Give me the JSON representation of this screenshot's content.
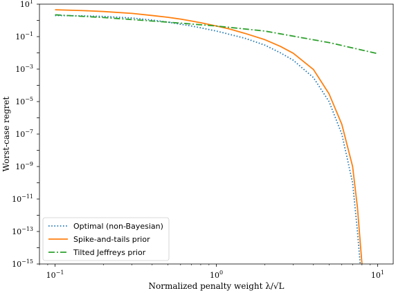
{
  "chart_data": {
    "type": "line",
    "xlabel": "Normalized penalty weight λ/√L",
    "ylabel": "Worst-case regret",
    "xscale": "log",
    "yscale": "log",
    "xlim": [
      0.08,
      12.5
    ],
    "ylim": [
      1e-15,
      10
    ],
    "x_tick_labels": [
      {
        "value": 0.1,
        "base": "10",
        "exp": "−1"
      },
      {
        "value": 1,
        "base": "10",
        "exp": "0"
      },
      {
        "value": 10,
        "base": "10",
        "exp": "1"
      }
    ],
    "y_tick_labels": [
      {
        "value": 10,
        "base": "10",
        "exp": "1"
      },
      {
        "value": 0.1,
        "base": "10",
        "exp": "−1"
      },
      {
        "value": 0.001,
        "base": "10",
        "exp": "−3"
      },
      {
        "value": 1e-05,
        "base": "10",
        "exp": "−5"
      },
      {
        "value": 1e-07,
        "base": "10",
        "exp": "−7"
      },
      {
        "value": 1e-09,
        "base": "10",
        "exp": "−9"
      },
      {
        "value": 1e-11,
        "base": "10",
        "exp": "−11"
      },
      {
        "value": 1e-13,
        "base": "10",
        "exp": "−13"
      },
      {
        "value": 1e-15,
        "base": "10",
        "exp": "−15"
      }
    ],
    "grid": false,
    "legend_position": "lower-left",
    "series": [
      {
        "name": "Optimal (non-Bayesian)",
        "color": "#1f77b4",
        "style": "dotted",
        "points": [
          [
            0.1,
            2.0
          ],
          [
            0.15,
            1.9
          ],
          [
            0.2,
            1.75
          ],
          [
            0.3,
            1.4
          ],
          [
            0.4,
            1.05
          ],
          [
            0.5,
            0.78
          ],
          [
            0.6,
            0.58
          ],
          [
            0.7,
            0.45
          ],
          [
            0.8,
            0.35
          ],
          [
            1.0,
            0.22
          ],
          [
            1.2,
            0.14
          ],
          [
            1.5,
            0.08
          ],
          [
            2.0,
            0.03
          ],
          [
            2.5,
            0.01
          ],
          [
            3.0,
            0.0035
          ],
          [
            4.0,
            0.0003
          ],
          [
            5.0,
            1e-05
          ],
          [
            6.0,
            1e-07
          ],
          [
            7.0,
            1e-10
          ],
          [
            7.5,
            1e-13
          ],
          [
            7.8,
            1e-15
          ]
        ]
      },
      {
        "name": "Spike-and-tails prior",
        "color": "#ff7f0e",
        "style": "solid",
        "points": [
          [
            0.1,
            4.5
          ],
          [
            0.15,
            4.0
          ],
          [
            0.2,
            3.5
          ],
          [
            0.3,
            2.7
          ],
          [
            0.4,
            2.0
          ],
          [
            0.5,
            1.55
          ],
          [
            0.6,
            1.2
          ],
          [
            0.7,
            0.92
          ],
          [
            0.8,
            0.72
          ],
          [
            1.0,
            0.45
          ],
          [
            1.2,
            0.3
          ],
          [
            1.5,
            0.16
          ],
          [
            2.0,
            0.065
          ],
          [
            2.5,
            0.025
          ],
          [
            3.0,
            0.0095
          ],
          [
            4.0,
            0.00095
          ],
          [
            5.0,
            3e-05
          ],
          [
            6.0,
            4e-07
          ],
          [
            7.0,
            1e-09
          ],
          [
            7.5,
            3e-12
          ],
          [
            8.0,
            1e-15
          ]
        ]
      },
      {
        "name": "Tilted Jeffreys prior",
        "color": "#2ca02c",
        "style": "dashdot",
        "points": [
          [
            0.1,
            2.2
          ],
          [
            0.2,
            1.5
          ],
          [
            0.5,
            0.78
          ],
          [
            1.0,
            0.45
          ],
          [
            2.0,
            0.22
          ],
          [
            5.0,
            0.043
          ],
          [
            10.0,
            0.009
          ]
        ]
      }
    ]
  }
}
